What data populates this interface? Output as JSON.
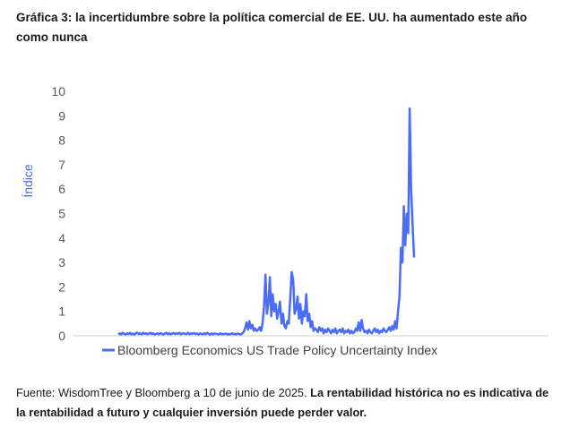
{
  "title": "Gráfica 3: la incertidumbre sobre la política comercial de EE. UU. ha aumentado este año como nunca",
  "footer": {
    "source": "Fuente: WisdomTree y Bloomberg a 10 de junio de 2025.",
    "disclaimer": "La rentabilidad histórica no es indicativa de la rentabilidad a futuro y cualquier inversión puede perder valor."
  },
  "chart_data": {
    "type": "line",
    "title": "",
    "xlabel": "",
    "ylabel": "Índice",
    "ylim": [
      0,
      10
    ],
    "yticks": [
      0,
      1,
      2,
      3,
      4,
      5,
      6,
      7,
      8,
      9,
      10
    ],
    "grid": false,
    "legend": "bottom-left",
    "series": [
      {
        "name": "Bloomberg Economics US Trade Policy Uncertainty Index",
        "color": "#4a6cf7",
        "x_range": [
          0,
          1
        ],
        "values": [
          0.05,
          0.1,
          0.06,
          0.12,
          0.08,
          0.05,
          0.1,
          0.07,
          0.12,
          0.06,
          0.09,
          0.05,
          0.1,
          0.13,
          0.07,
          0.1,
          0.06,
          0.12,
          0.08,
          0.1,
          0.06,
          0.09,
          0.12,
          0.07,
          0.1,
          0.05,
          0.08,
          0.1,
          0.06,
          0.11,
          0.08,
          0.05,
          0.09,
          0.12,
          0.07,
          0.1,
          0.06,
          0.09,
          0.11,
          0.07,
          0.1,
          0.08,
          0.12,
          0.06,
          0.09,
          0.1,
          0.07,
          0.08,
          0.12,
          0.06,
          0.1,
          0.08,
          0.11,
          0.07,
          0.09,
          0.05,
          0.1,
          0.08,
          0.06,
          0.1,
          0.07,
          0.12,
          0.08,
          0.05,
          0.1,
          0.06,
          0.09,
          0.08,
          0.07,
          0.06,
          0.1,
          0.06,
          0.08,
          0.07,
          0.09,
          0.05,
          0.08,
          0.06,
          0.1,
          0.07,
          0.08,
          0.06,
          0.09,
          0.07,
          0.05,
          0.1,
          0.15,
          0.3,
          0.55,
          0.25,
          0.6,
          0.3,
          0.45,
          0.2,
          0.3,
          0.2,
          0.25,
          0.35,
          0.2,
          0.5,
          1.2,
          2.5,
          0.9,
          1.3,
          2.4,
          0.8,
          1.7,
          1.0,
          1.3,
          0.7,
          1.0,
          1.4,
          0.5,
          0.9,
          0.4,
          0.3,
          0.6,
          0.5,
          1.5,
          2.6,
          2.3,
          0.9,
          1.1,
          1.6,
          0.7,
          1.3,
          0.5,
          1.0,
          0.8,
          1.7,
          0.6,
          0.9,
          0.35,
          0.6,
          0.2,
          0.3,
          0.25,
          0.15,
          0.35,
          0.2,
          0.3,
          0.1,
          0.25,
          0.15,
          0.3,
          0.2,
          0.1,
          0.25,
          0.15,
          0.3,
          0.1,
          0.2,
          0.25,
          0.15,
          0.3,
          0.1,
          0.2,
          0.15,
          0.25,
          0.1,
          0.2,
          0.1,
          0.15,
          0.3,
          0.2,
          0.55,
          0.2,
          0.65,
          0.3,
          0.15,
          0.2,
          0.1,
          0.25,
          0.15,
          0.1,
          0.2,
          0.3,
          0.15,
          0.25,
          0.1,
          0.2,
          0.15,
          0.3,
          0.2,
          0.15,
          0.25,
          0.35,
          0.2,
          0.4,
          0.25,
          0.6,
          0.3,
          1.0,
          1.6,
          3.6,
          3.0,
          5.3,
          3.7,
          5.0,
          4.2,
          9.3,
          6.0,
          4.5,
          3.2
        ]
      }
    ]
  }
}
